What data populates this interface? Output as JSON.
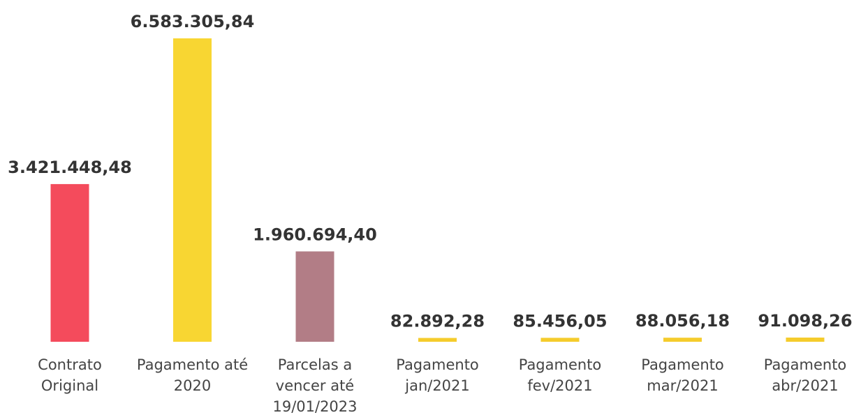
{
  "chart_data": {
    "type": "bar",
    "categories": [
      "Contrato\nOriginal",
      "Pagamento até\n2020",
      "Parcelas a\nvencer até\n19/01/2023",
      "Pagamento\njan/2021",
      "Pagamento\nfev/2021",
      "Pagamento\nmar/2021",
      "Pagamento\nabr/2021"
    ],
    "values": [
      3421448.48,
      6583305.84,
      1960694.4,
      82892.28,
      85456.05,
      88056.18,
      91098.26
    ],
    "value_labels": [
      "3.421.448,48",
      "6.583.305,84",
      "1.960.694,40",
      "82.892,28",
      "85.456,05",
      "88.056,18",
      "91.098,26"
    ],
    "colors": [
      "#f44b5c",
      "#f8d632",
      "#b27d86",
      "#f5cc2c",
      "#f5cc2c",
      "#f5cc2c",
      "#f5cc2c"
    ]
  }
}
